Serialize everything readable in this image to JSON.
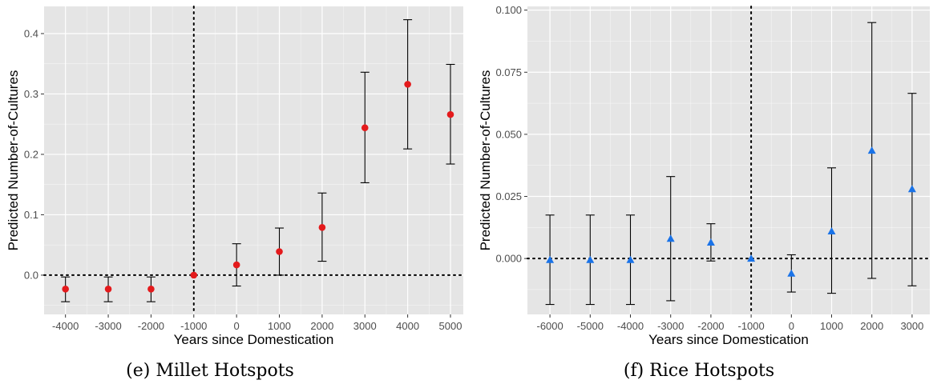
{
  "colors": {
    "panel_bg": "#e5e5e5",
    "grid_major": "#ffffff",
    "ref_line": "#000000",
    "errorbar": "#000000",
    "millet_point": "#e41a1c",
    "rice_point": "#1a73e8"
  },
  "chart_data": [
    {
      "type": "scatter",
      "marker": "circle",
      "caption": "(e) Millet Hotspots",
      "xlabel": "Years since Domestication",
      "ylabel": "Predicted Number-of-Cultures",
      "x": [
        -4000,
        -3000,
        -2000,
        -1000,
        0,
        1000,
        2000,
        3000,
        4000,
        5000
      ],
      "y": [
        -0.023,
        -0.023,
        -0.023,
        0.0,
        0.017,
        0.039,
        0.079,
        0.244,
        0.316,
        0.266
      ],
      "ci_low": [
        -0.044,
        -0.044,
        -0.044,
        0.0,
        -0.018,
        0.0,
        0.023,
        0.153,
        0.209,
        0.184
      ],
      "ci_high": [
        -0.003,
        -0.003,
        -0.003,
        0.0,
        0.052,
        0.078,
        0.136,
        0.336,
        0.423,
        0.349
      ],
      "x_ticks": [
        "-4000",
        "-3000",
        "-2000",
        "-1000",
        "0",
        "1000",
        "2000",
        "3000",
        "4000",
        "5000"
      ],
      "y_ticks": [
        "0.0",
        "0.1",
        "0.2",
        "0.3",
        "0.4"
      ],
      "y_tick_values": [
        0.0,
        0.1,
        0.2,
        0.3,
        0.4
      ],
      "xlim": [
        -4500,
        5300
      ],
      "ylim": [
        -0.065,
        0.445
      ],
      "vline_x": -1000,
      "hline_y": 0,
      "grid": true
    },
    {
      "type": "scatter",
      "marker": "triangle",
      "caption": "(f) Rice Hotspots",
      "xlabel": "Years since Domestication",
      "ylabel": "Predicted Number-of-Cultures",
      "x": [
        -6000,
        -5000,
        -4000,
        -3000,
        -2000,
        -1000,
        0,
        1000,
        2000,
        3000
      ],
      "y": [
        -0.0005,
        -0.0005,
        -0.0005,
        0.008,
        0.0065,
        0.0,
        -0.006,
        0.011,
        0.0435,
        0.028
      ],
      "ci_low": [
        -0.0185,
        -0.0185,
        -0.0185,
        -0.017,
        -0.001,
        0.0,
        -0.0135,
        -0.014,
        -0.008,
        -0.011
      ],
      "ci_high": [
        0.0175,
        0.0175,
        0.0175,
        0.033,
        0.014,
        0.0,
        0.0015,
        0.0365,
        0.095,
        0.0665
      ],
      "x_ticks": [
        "-6000",
        "-5000",
        "-4000",
        "-3000",
        "-2000",
        "-1000",
        "0",
        "1000",
        "2000",
        "3000"
      ],
      "y_ticks": [
        "0.000",
        "0.025",
        "0.050",
        "0.075",
        "0.100"
      ],
      "y_tick_values": [
        0.0,
        0.025,
        0.05,
        0.075,
        0.1
      ],
      "xlim": [
        -6560,
        3440
      ],
      "ylim": [
        -0.0225,
        0.1015
      ],
      "vline_x": -1000,
      "hline_y": 0,
      "grid": true
    }
  ]
}
